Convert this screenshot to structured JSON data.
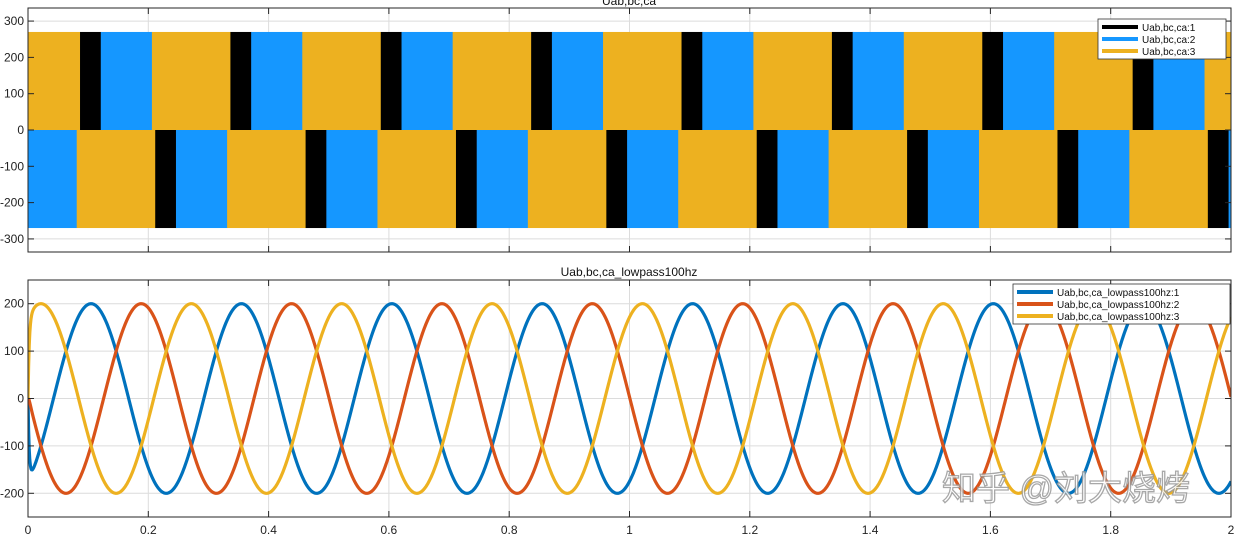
{
  "chart_data": [
    {
      "type": "area",
      "title": "Uab,bc,ca",
      "xlim": [
        0,
        2
      ],
      "ylim": [
        -336,
        336
      ],
      "yticks": [
        -300,
        -200,
        -100,
        0,
        100,
        200,
        300
      ],
      "xticks": [
        0,
        0.2,
        0.4,
        0.6,
        0.8,
        1,
        1.2,
        1.4,
        1.6,
        1.8,
        2
      ],
      "show_xtick_labels": false,
      "grid": true,
      "legend_position": "top-right",
      "amplitude": 270,
      "period": 0.25,
      "pattern_offset": 0.0865,
      "positive_half_segments": [
        {
          "series": 0,
          "start": 0,
          "end": 0.0345
        },
        {
          "series": 1,
          "start": 0.0345,
          "end": 0.1195
        },
        {
          "series": 2,
          "start": 0.1195,
          "end": 0.25
        }
      ],
      "negative_half_shift": 0.125,
      "series": [
        {
          "name": "Uab,bc,ca:1",
          "color": "#000000"
        },
        {
          "name": "Uab,bc,ca:2",
          "color": "#1597FF"
        },
        {
          "name": "Uab,bc,ca:3",
          "color": "#EDB120"
        }
      ]
    },
    {
      "type": "line",
      "title": "Uab,bc,ca_lowpass100hz",
      "xlim": [
        0,
        2
      ],
      "ylim": [
        -250,
        250
      ],
      "yticks": [
        -200,
        -100,
        0,
        100,
        200
      ],
      "xticks": [
        0,
        0.2,
        0.4,
        0.6,
        0.8,
        1,
        1.2,
        1.4,
        1.6,
        1.8,
        2
      ],
      "xtick_labels": [
        "0",
        "0.2",
        "0.4",
        "0.6",
        "0.8",
        "1",
        "1.2",
        "1.4",
        "1.6",
        "1.8",
        "2"
      ],
      "grid": true,
      "legend_position": "top-right",
      "amplitude": 200,
      "frequency": 4,
      "series": [
        {
          "name": "Uab,bc,ca_lowpass100hz:1",
          "color": "#0072BD",
          "phase_deg": -61
        },
        {
          "name": "Uab,bc,ca_lowpass100hz:2",
          "color": "#D95319",
          "phase_deg": -181
        },
        {
          "name": "Uab,bc,ca_lowpass100hz:3",
          "color": "#EDB120",
          "phase_deg": 59
        }
      ]
    }
  ],
  "watermark": "知乎 @刘大烧烤"
}
